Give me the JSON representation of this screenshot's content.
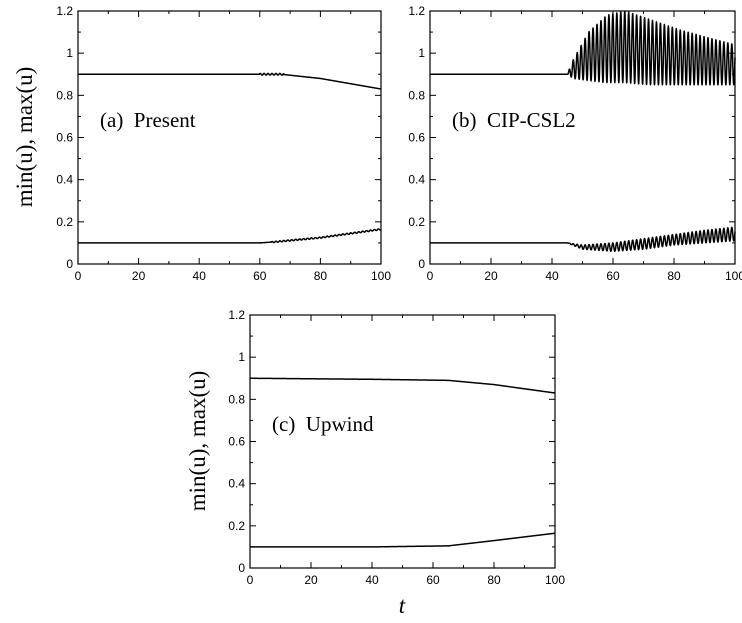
{
  "chart_data": [
    {
      "type": "line",
      "panel_label": "(a)  Present",
      "ylabel": "min(u), max(u)",
      "xlabel": "",
      "xlim": [
        0,
        100
      ],
      "ylim": [
        0,
        1.2
      ],
      "xticks": [
        "0",
        "20",
        "40",
        "60",
        "80",
        "100"
      ],
      "yticks": [
        "0",
        "0.2",
        "0.4",
        "0.6",
        "0.8",
        "1",
        "1.2"
      ],
      "series": [
        {
          "style": "smooth",
          "x": [
            0,
            60,
            67,
            80,
            100
          ],
          "y": [
            0.9,
            0.9,
            0.9,
            0.88,
            0.83
          ],
          "osc_start": 60,
          "osc_end": 68,
          "osc_amp": 0.004
        },
        {
          "style": "smooth",
          "x": [
            0,
            60,
            65,
            80,
            100
          ],
          "y": [
            0.1,
            0.1,
            0.105,
            0.125,
            0.165
          ],
          "osc_start": 64,
          "osc_end": 100,
          "osc_amp": 0.003
        }
      ]
    },
    {
      "type": "line",
      "panel_label": "(b)  CIP-CSL2",
      "ylabel": "",
      "xlabel": "",
      "xlim": [
        0,
        100
      ],
      "ylim": [
        0,
        1.2
      ],
      "xticks": [
        "0",
        "20",
        "40",
        "60",
        "80",
        "100"
      ],
      "yticks": [
        "0",
        "0.2",
        "0.4",
        "0.6",
        "0.8",
        "1",
        "1.2"
      ],
      "series": [
        {
          "style": "oscillating",
          "center": 0.9,
          "osc_start": 45,
          "period": 1.3,
          "upper_envelope": {
            "x": [
              45,
              47,
              52,
              58,
              64,
              72,
              82,
              92,
              100
            ],
            "y": [
              0.9,
              0.97,
              1.1,
              1.18,
              1.2,
              1.16,
              1.11,
              1.07,
              1.04
            ]
          },
          "lower_envelope": {
            "x": [
              45,
              47,
              52,
              58,
              64,
              72,
              82,
              92,
              100
            ],
            "y": [
              0.9,
              0.88,
              0.87,
              0.86,
              0.86,
              0.85,
              0.85,
              0.85,
              0.85
            ]
          }
        },
        {
          "style": "oscillating",
          "center": 0.1,
          "osc_start": 45,
          "period": 1.3,
          "upper_envelope": {
            "x": [
              45,
              50,
              60,
              70,
              80,
              90,
              100
            ],
            "y": [
              0.1,
              0.09,
              0.1,
              0.12,
              0.14,
              0.16,
              0.175
            ]
          },
          "lower_envelope": {
            "x": [
              45,
              50,
              60,
              70,
              80,
              90,
              100
            ],
            "y": [
              0.1,
              0.07,
              0.06,
              0.07,
              0.09,
              0.1,
              0.11
            ]
          }
        }
      ]
    },
    {
      "type": "line",
      "panel_label": "(c)  Upwind",
      "ylabel": "min(u), max(u)",
      "xlabel": "t",
      "xlim": [
        0,
        100
      ],
      "ylim": [
        0,
        1.2
      ],
      "xticks": [
        "0",
        "20",
        "40",
        "60",
        "80",
        "100"
      ],
      "yticks": [
        "0",
        "0.2",
        "0.4",
        "0.6",
        "0.8",
        "1",
        "1.2"
      ],
      "series": [
        {
          "style": "smooth",
          "x": [
            0,
            40,
            65,
            80,
            100
          ],
          "y": [
            0.9,
            0.895,
            0.89,
            0.87,
            0.83
          ]
        },
        {
          "style": "smooth",
          "x": [
            0,
            40,
            65,
            80,
            100
          ],
          "y": [
            0.1,
            0.1,
            0.105,
            0.13,
            0.165
          ]
        }
      ]
    }
  ]
}
